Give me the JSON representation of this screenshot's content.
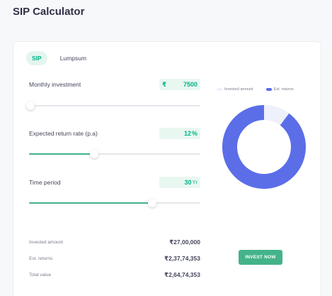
{
  "page_title": "SIP Calculator",
  "tabs": [
    {
      "label": "SIP",
      "active": true
    },
    {
      "label": "Lumpsum",
      "active": false
    }
  ],
  "inputs": {
    "monthly_investment": {
      "label": "Monthly investment",
      "prefix": "₹",
      "value": "7500",
      "slider_fraction": 0.01
    },
    "return_rate": {
      "label": "Expected return rate (p.a)",
      "value": "12",
      "unit": "%",
      "slider_fraction": 0.38
    },
    "time_period": {
      "label": "Time period",
      "value": "30",
      "unit": "Yr",
      "slider_fraction": 0.72
    }
  },
  "legend": {
    "invested": {
      "label": "Invested amount",
      "color": "#eef0fb"
    },
    "returns": {
      "label": "Est. returns",
      "color": "#5b6ee8"
    }
  },
  "summary": {
    "invested": {
      "label": "Invested amount",
      "value": "₹27,00,000"
    },
    "returns": {
      "label": "Est. returns",
      "value": "₹2,37,74,353"
    },
    "total": {
      "label": "Total value",
      "value": "₹2,64,74,353"
    }
  },
  "invest_button": "INVEST NOW",
  "colors": {
    "accent_green": "#00b386",
    "slider_green": "#44b38a",
    "returns_blue": "#5b6ee8",
    "invested_light": "#eef0fb"
  },
  "chart_data": {
    "type": "pie",
    "categories": [
      "Invested amount",
      "Est. returns"
    ],
    "values": [
      2700000,
      23774353
    ]
  }
}
